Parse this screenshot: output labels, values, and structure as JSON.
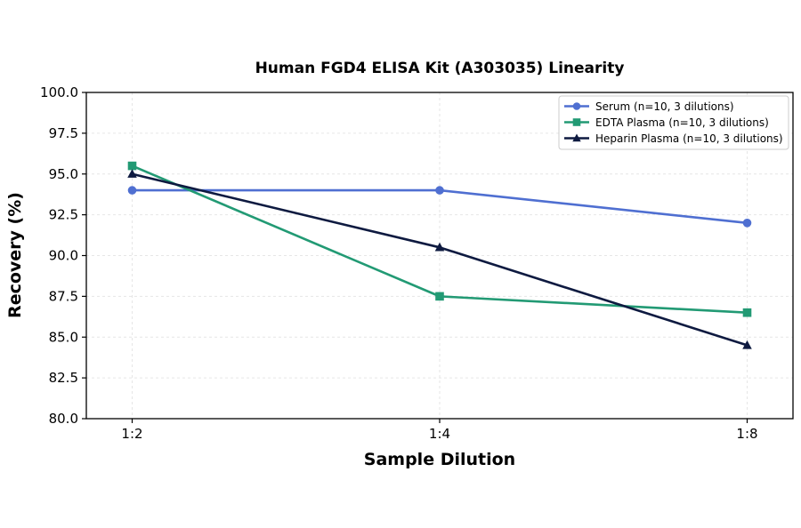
{
  "chart_data": {
    "type": "line",
    "title": "Human FGD4 ELISA Kit (A303035) Linearity",
    "xlabel": "Sample Dilution",
    "ylabel": "Recovery (%)",
    "categories": [
      "1:2",
      "1:4",
      "1:8"
    ],
    "ylim": [
      80.0,
      100.0
    ],
    "yticks": [
      "80.0",
      "82.5",
      "85.0",
      "87.5",
      "90.0",
      "92.5",
      "95.0",
      "97.5",
      "100.0"
    ],
    "grid": true,
    "legend_position": "top-right",
    "series": [
      {
        "name": "Serum (n=10, 3 dilutions)",
        "values": [
          94.0,
          94.0,
          92.0
        ],
        "color": "#4F6FD1",
        "marker": "circle"
      },
      {
        "name": "EDTA Plasma (n=10, 3 dilutions)",
        "values": [
          95.5,
          87.5,
          86.5
        ],
        "color": "#229A74",
        "marker": "square"
      },
      {
        "name": "Heparin Plasma (n=10, 3 dilutions)",
        "values": [
          95.0,
          90.5,
          84.5
        ],
        "color": "#0E1A40",
        "marker": "triangle"
      }
    ]
  }
}
